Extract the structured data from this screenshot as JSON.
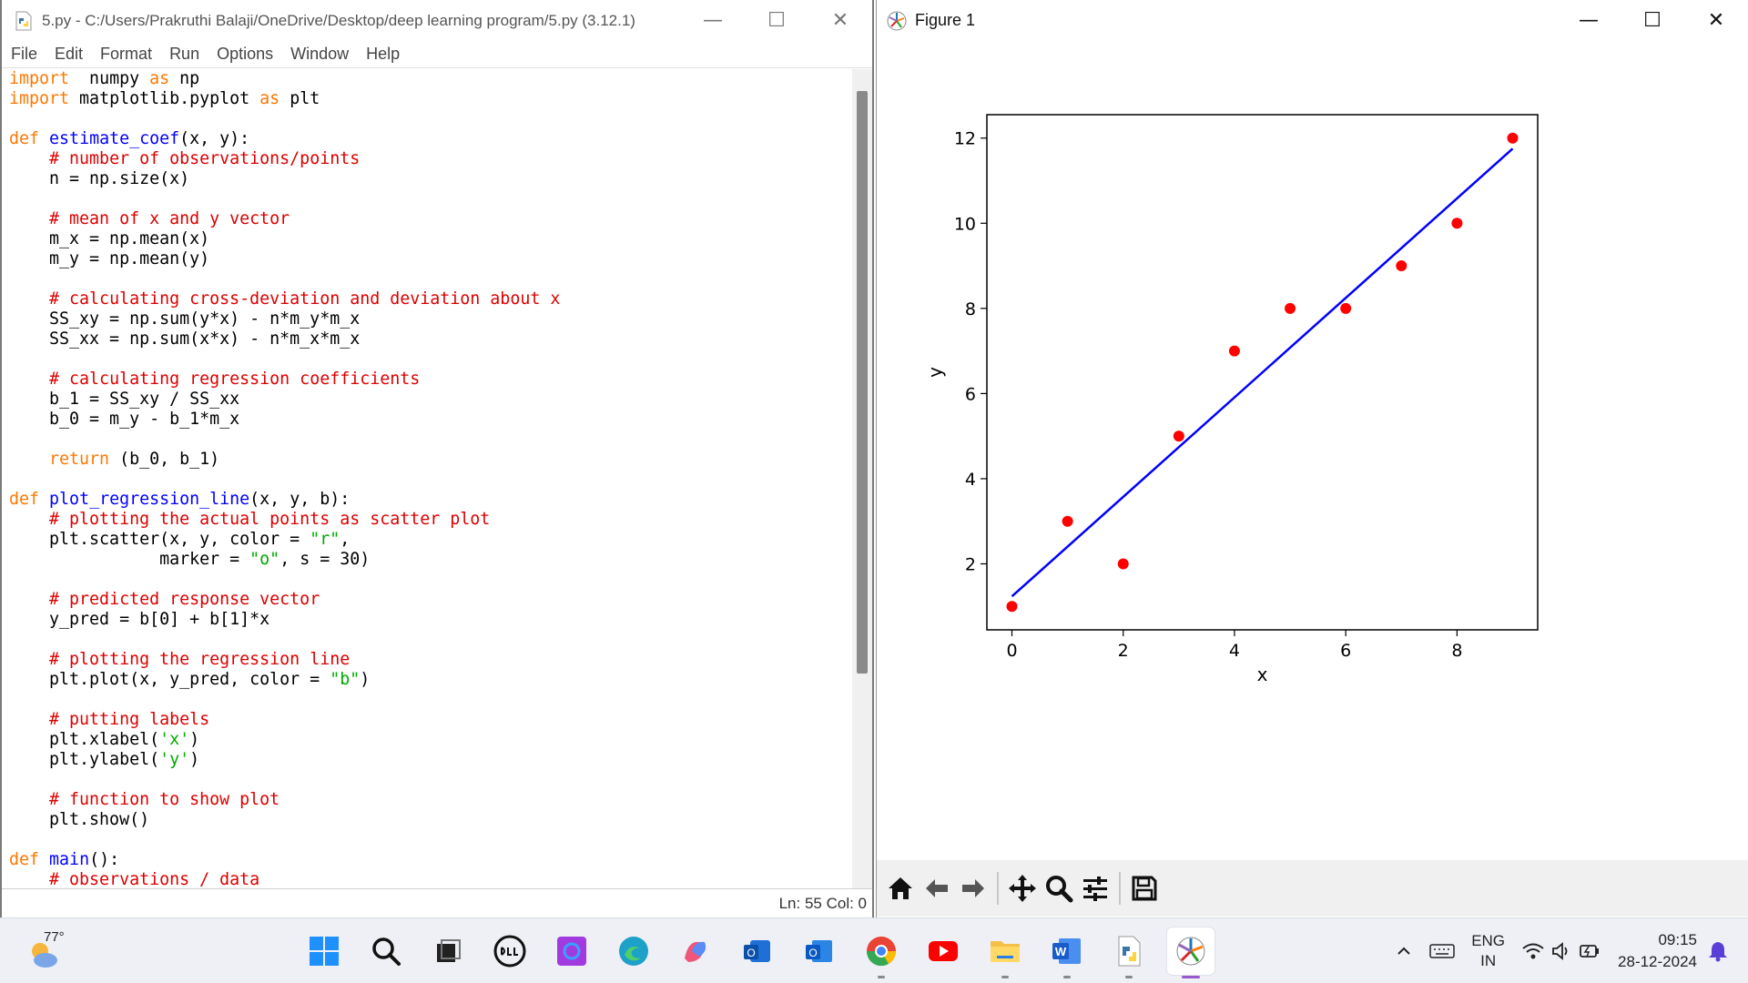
{
  "idle": {
    "title": "5.py - C:/Users/Prakruthi Balaji/OneDrive/Desktop/deep learning program/5.py (3.12.1)",
    "menu": [
      "File",
      "Edit",
      "Format",
      "Run",
      "Options",
      "Window",
      "Help"
    ],
    "status": "Ln: 55   Col: 0",
    "code": [
      [
        [
          "kw",
          "import"
        ],
        [
          "",
          "  numpy "
        ],
        [
          "kw",
          "as"
        ],
        [
          "",
          " np"
        ]
      ],
      [
        [
          "kw",
          "import"
        ],
        [
          "",
          " matplotlib.pyplot "
        ],
        [
          "kw",
          "as"
        ],
        [
          "",
          " plt"
        ]
      ],
      [
        [
          "",
          ""
        ]
      ],
      [
        [
          "kw",
          "def"
        ],
        [
          "",
          " "
        ],
        [
          "fn",
          "estimate_coef"
        ],
        [
          "",
          "(x, y):"
        ]
      ],
      [
        [
          "",
          "    "
        ],
        [
          "cm",
          "# number of observations/points"
        ]
      ],
      [
        [
          "",
          "    n = np.size(x)"
        ]
      ],
      [
        [
          "",
          ""
        ]
      ],
      [
        [
          "",
          "    "
        ],
        [
          "cm",
          "# mean of x and y vector"
        ]
      ],
      [
        [
          "",
          "    m_x = np.mean(x)"
        ]
      ],
      [
        [
          "",
          "    m_y = np.mean(y)"
        ]
      ],
      [
        [
          "",
          ""
        ]
      ],
      [
        [
          "",
          "    "
        ],
        [
          "cm",
          "# calculating cross-deviation and deviation about x"
        ]
      ],
      [
        [
          "",
          "    SS_xy = np.sum(y*x) - n*m_y*m_x"
        ]
      ],
      [
        [
          "",
          "    SS_xx = np.sum(x*x) - n*m_x*m_x"
        ]
      ],
      [
        [
          "",
          ""
        ]
      ],
      [
        [
          "",
          "    "
        ],
        [
          "cm",
          "# calculating regression coefficients"
        ]
      ],
      [
        [
          "",
          "    b_1 = SS_xy / SS_xx"
        ]
      ],
      [
        [
          "",
          "    b_0 = m_y - b_1*m_x"
        ]
      ],
      [
        [
          "",
          ""
        ]
      ],
      [
        [
          "",
          "    "
        ],
        [
          "kw",
          "return"
        ],
        [
          "",
          " (b_0, b_1)"
        ]
      ],
      [
        [
          "",
          ""
        ]
      ],
      [
        [
          "kw",
          "def"
        ],
        [
          "",
          " "
        ],
        [
          "fn",
          "plot_regression_line"
        ],
        [
          "",
          "(x, y, b):"
        ]
      ],
      [
        [
          "",
          "    "
        ],
        [
          "cm",
          "# plotting the actual points as scatter plot"
        ]
      ],
      [
        [
          "",
          "    plt.scatter(x, y, color = "
        ],
        [
          "st",
          "\"r\""
        ],
        [
          "",
          ","
        ]
      ],
      [
        [
          "",
          "               marker = "
        ],
        [
          "st",
          "\"o\""
        ],
        [
          "",
          ", s = 30)"
        ]
      ],
      [
        [
          "",
          ""
        ]
      ],
      [
        [
          "",
          "    "
        ],
        [
          "cm",
          "# predicted response vector"
        ]
      ],
      [
        [
          "",
          "    y_pred = b[0] + b[1]*x"
        ]
      ],
      [
        [
          "",
          ""
        ]
      ],
      [
        [
          "",
          "    "
        ],
        [
          "cm",
          "# plotting the regression line"
        ]
      ],
      [
        [
          "",
          "    plt.plot(x, y_pred, color = "
        ],
        [
          "st",
          "\"b\""
        ],
        [
          "",
          ")"
        ]
      ],
      [
        [
          "",
          ""
        ]
      ],
      [
        [
          "",
          "    "
        ],
        [
          "cm",
          "# putting labels"
        ]
      ],
      [
        [
          "",
          "    plt.xlabel("
        ],
        [
          "st",
          "'x'"
        ],
        [
          "",
          ")"
        ]
      ],
      [
        [
          "",
          "    plt.ylabel("
        ],
        [
          "st",
          "'y'"
        ],
        [
          "",
          ")"
        ]
      ],
      [
        [
          "",
          ""
        ]
      ],
      [
        [
          "",
          "    "
        ],
        [
          "cm",
          "# function to show plot"
        ]
      ],
      [
        [
          "",
          "    plt.show()"
        ]
      ],
      [
        [
          "",
          ""
        ]
      ],
      [
        [
          "kw",
          "def"
        ],
        [
          "",
          " "
        ],
        [
          "fn",
          "main"
        ],
        [
          "",
          "():"
        ]
      ],
      [
        [
          "",
          "    "
        ],
        [
          "cm",
          "# observations / data"
        ]
      ]
    ]
  },
  "figure": {
    "title": "Figure 1"
  },
  "chart_data": {
    "type": "scatter",
    "title": "",
    "xlabel": "x",
    "ylabel": "y",
    "xlim": [
      -0.45,
      9.45
    ],
    "ylim": [
      0.45,
      12.55
    ],
    "xticks": [
      0,
      2,
      4,
      6,
      8
    ],
    "yticks": [
      2,
      4,
      6,
      8,
      10,
      12
    ],
    "grid": false,
    "series": [
      {
        "kind": "scatter",
        "color": "#ff0000",
        "x": [
          0,
          1,
          2,
          3,
          4,
          5,
          6,
          7,
          8,
          9
        ],
        "y": [
          1,
          3,
          2,
          5,
          7,
          8,
          8,
          9,
          10,
          12
        ]
      },
      {
        "kind": "line",
        "color": "#0000ff",
        "x": [
          0,
          9
        ],
        "y": [
          1.236,
          11.752
        ]
      }
    ]
  },
  "taskbar": {
    "temperature": "77°",
    "lang_top": "ENG",
    "lang_bottom": "IN",
    "time": "09:15",
    "date": "28-12-2024"
  }
}
